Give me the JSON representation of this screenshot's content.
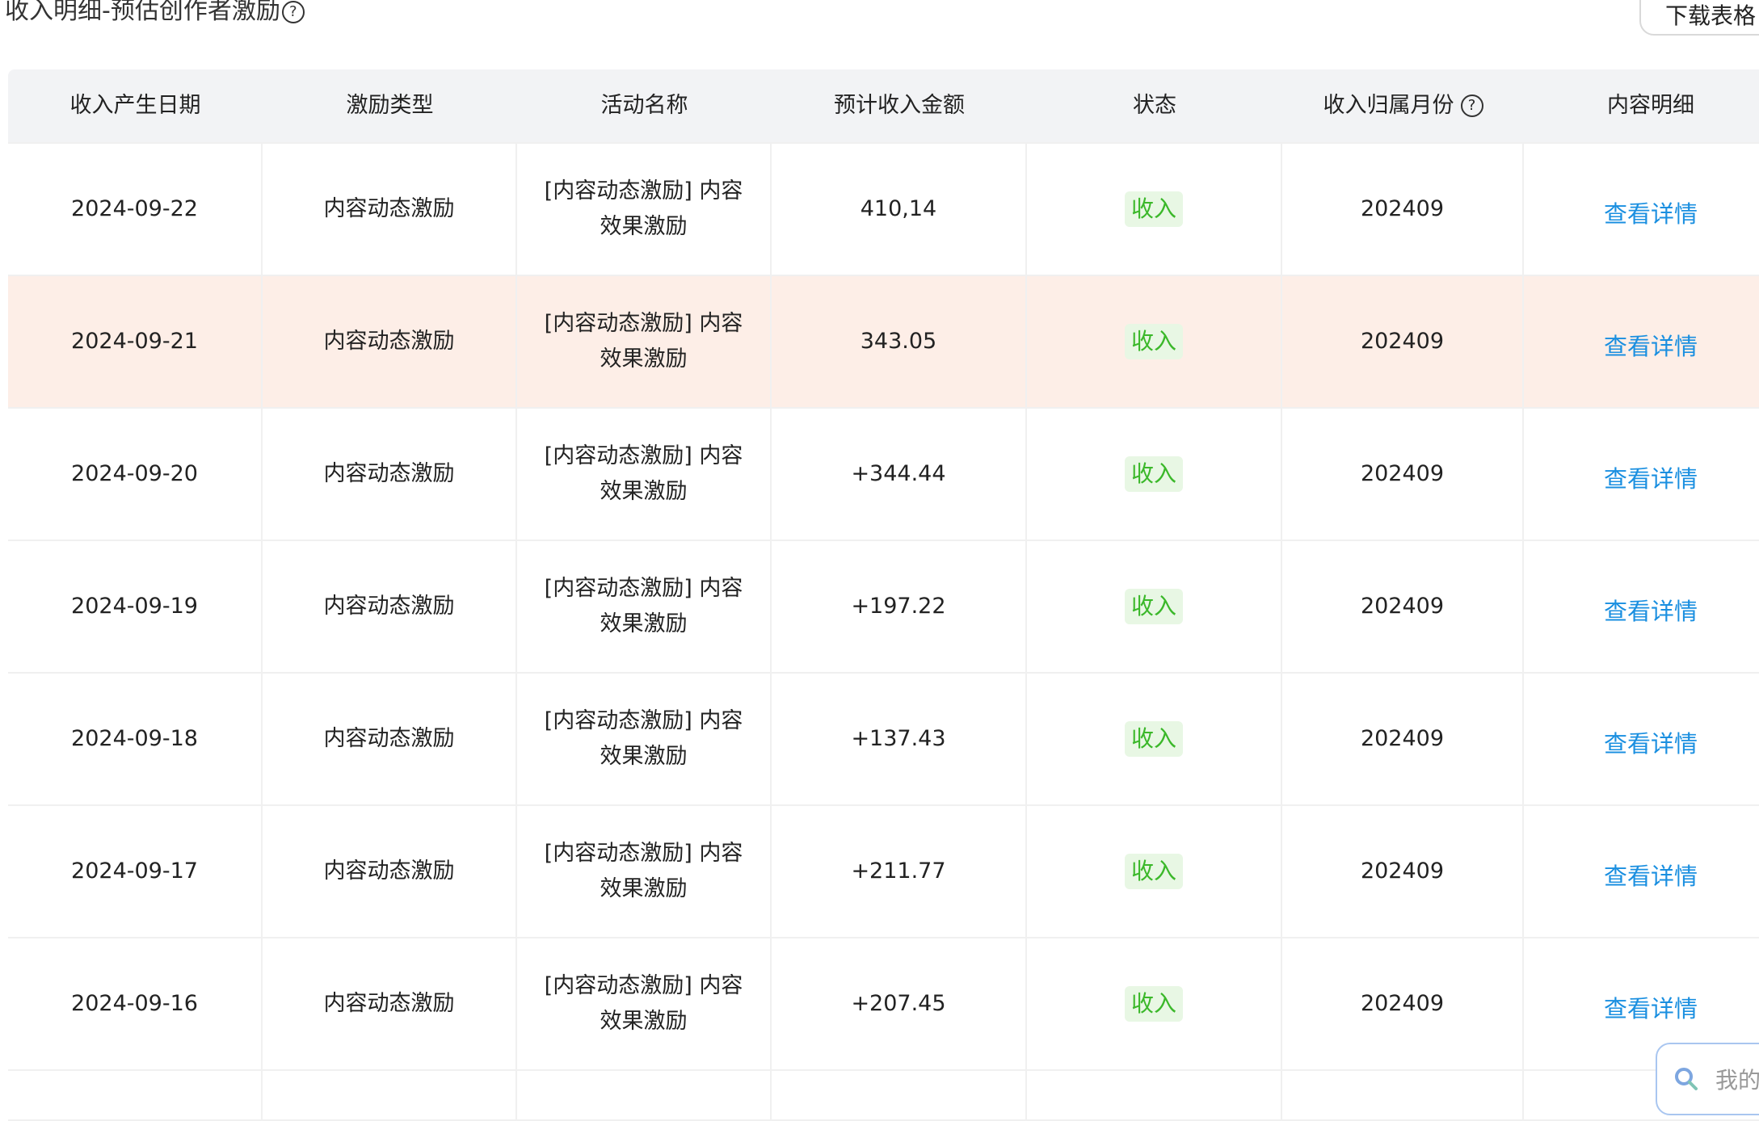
{
  "title": "收入明细-预估创作者激励",
  "download_button": "下载表格",
  "headers": [
    "收入产生日期",
    "激励类型",
    "活动名称",
    "预计收入金额",
    "状态",
    "收入归属月份",
    "内容明细"
  ],
  "rows": [
    {
      "date": "2024-09-22",
      "type": "内容动态激励",
      "activity": "[内容动态激励] 内容效果激励",
      "amount": "410,14",
      "status": "收入",
      "month": "202409",
      "detail": "查看详情"
    },
    {
      "date": "2024-09-21",
      "type": "内容动态激励",
      "activity": "[内容动态激励] 内容效果激励",
      "amount": "343.05",
      "status": "收入",
      "month": "202409",
      "detail": "查看详情",
      "highlighted": true
    },
    {
      "date": "2024-09-20",
      "type": "内容动态激励",
      "activity": "[内容动态激励] 内容效果激励",
      "amount": "+344.44",
      "status": "收入",
      "month": "202409",
      "detail": "查看详情"
    },
    {
      "date": "2024-09-19",
      "type": "内容动态激励",
      "activity": "[内容动态激励] 内容效果激励",
      "amount": "+197.22",
      "status": "收入",
      "month": "202409",
      "detail": "查看详情"
    },
    {
      "date": "2024-09-18",
      "type": "内容动态激励",
      "activity": "[内容动态激励] 内容效果激励",
      "amount": "+137.43",
      "status": "收入",
      "month": "202409",
      "detail": "查看详情"
    },
    {
      "date": "2024-09-17",
      "type": "内容动态激励",
      "activity": "[内容动态激励] 内容效果激励",
      "amount": "+211.77",
      "status": "收入",
      "month": "202409",
      "detail": "查看详情"
    },
    {
      "date": "2024-09-16",
      "type": "内容动态激励",
      "activity": "[内容动态激励] 内容效果激励",
      "amount": "+207.45",
      "status": "收入",
      "month": "202409",
      "detail": "查看详情"
    }
  ],
  "search_placeholder": "我的",
  "colors": {
    "status_green": "#3bb82a",
    "link_blue": "#1a8fe0",
    "highlight_row": "#fdeee7",
    "header_bg": "#f2f3f5"
  },
  "icons": {
    "help": "question-circle-icon",
    "search": "search-icon"
  }
}
